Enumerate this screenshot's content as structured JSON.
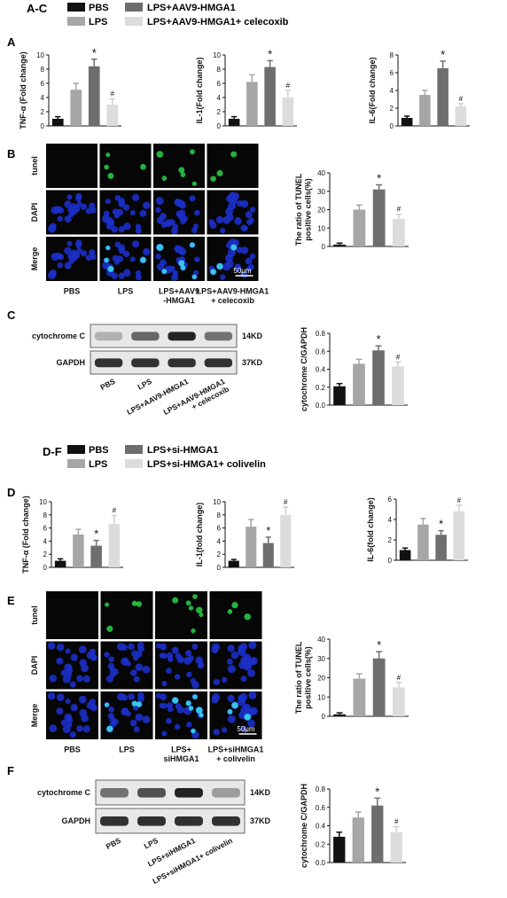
{
  "colors": {
    "black": "#111111",
    "dark": "#6e6e6e",
    "mid": "#a6a6a6",
    "light": "#dcdcdc",
    "micro_bg": "#060606",
    "nuclei": "#1c2fc8",
    "tunel": "#2ad14a",
    "merge": "#3ad7e6"
  },
  "panel_labels": {
    "ac": "A-C",
    "a": "A",
    "b": "B",
    "c": "C",
    "df": "D-F",
    "d": "D",
    "e": "E",
    "f": "F"
  },
  "legend_top": [
    "PBS",
    "LPS+AAV9-HMGA1",
    "LPS",
    "LPS+AAV9-HMGA1+ celecoxib"
  ],
  "legend_bottom": [
    "PBS",
    "LPS+si-HMGA1",
    "LPS",
    "LPS+si-HMGA1+ colivelin"
  ],
  "row_labels": [
    "tunel",
    "DAPI",
    "Merge"
  ],
  "scale_bar": "50μm",
  "b_columns": [
    "PBS",
    "LPS",
    "LPS+AAV9\n-HMGA1",
    "LPS+AAV9-HMGA1\n+ celecoxib"
  ],
  "e_columns": [
    "PBS",
    "LPS",
    "LPS+\nsiHMGA1",
    "LPS+siHMGA1\n+ colivelin"
  ],
  "c_blot": {
    "rows": [
      "cytochrome C",
      "GAPDH"
    ],
    "kd": [
      "14KD",
      "37KD"
    ],
    "lanes": [
      "PBS",
      "LPS",
      "LPS+AAV9-HMGA1",
      "LPS+AAV9-HMGA1\n+ celecoxib"
    ]
  },
  "f_blot": {
    "rows": [
      "cytochrome C",
      "GAPDH"
    ],
    "kd": [
      "14KD",
      "37KD"
    ],
    "lanes": [
      "PBS",
      "LPS",
      "LPS+siHMGA1",
      "LPS+siHMGA1+ colivelin"
    ]
  },
  "chart_data": [
    {
      "id": "A1",
      "type": "bar",
      "ylabel": "TNF-α (Fold change)",
      "ylim": [
        0,
        10
      ],
      "yticks": [
        0,
        2,
        4,
        6,
        8,
        10
      ],
      "values": [
        1.0,
        5.1,
        8.4,
        3.0
      ],
      "errors": [
        0.3,
        0.9,
        1.0,
        0.8
      ],
      "marks": [
        "",
        "",
        "*",
        "#"
      ]
    },
    {
      "id": "A2",
      "type": "bar",
      "ylabel": "IL-1(Fold change)",
      "ylim": [
        0,
        10
      ],
      "yticks": [
        0,
        2,
        4,
        6,
        8,
        10
      ],
      "values": [
        1.0,
        6.2,
        8.3,
        4.0
      ],
      "errors": [
        0.3,
        1.0,
        0.9,
        1.0
      ],
      "marks": [
        "",
        "",
        "*",
        "#"
      ]
    },
    {
      "id": "A3",
      "type": "bar",
      "ylabel": "IL-6(Fold change)",
      "ylim": [
        0,
        8
      ],
      "yticks": [
        0,
        2,
        4,
        6,
        8
      ],
      "values": [
        0.9,
        3.5,
        6.5,
        2.2
      ],
      "errors": [
        0.2,
        0.5,
        0.8,
        0.3
      ],
      "marks": [
        "",
        "",
        "*",
        "#"
      ]
    },
    {
      "id": "B",
      "type": "bar",
      "ylabel": "The ratio of TUNEL\npositive cells(%)",
      "ylim": [
        0,
        40
      ],
      "yticks": [
        0,
        10,
        20,
        30,
        40
      ],
      "values": [
        1.0,
        20.0,
        31.0,
        15.0
      ],
      "errors": [
        0.8,
        2.5,
        2.5,
        2.5
      ],
      "marks": [
        "",
        "",
        "*",
        "#"
      ]
    },
    {
      "id": "C",
      "type": "bar",
      "ylabel": "cytochrome C/GAPDH",
      "ylim": [
        0,
        0.8
      ],
      "yticks": [
        0.0,
        0.2,
        0.4,
        0.6,
        0.8
      ],
      "values": [
        0.21,
        0.46,
        0.61,
        0.43
      ],
      "errors": [
        0.03,
        0.05,
        0.05,
        0.05
      ],
      "marks": [
        "",
        "",
        "*",
        "#"
      ]
    },
    {
      "id": "D1",
      "type": "bar",
      "ylabel": "TNF-α (Fold change)",
      "ylim": [
        0,
        10
      ],
      "yticks": [
        0,
        2,
        4,
        6,
        8,
        10
      ],
      "values": [
        1.0,
        5.0,
        3.3,
        6.6
      ],
      "errors": [
        0.3,
        0.8,
        0.8,
        1.3
      ],
      "marks": [
        "",
        "",
        "*",
        "#"
      ]
    },
    {
      "id": "D2",
      "type": "bar",
      "ylabel": "IL-1(fold change)",
      "ylim": [
        0,
        10
      ],
      "yticks": [
        0,
        2,
        4,
        6,
        8,
        10
      ],
      "values": [
        1.0,
        6.2,
        3.7,
        8.0
      ],
      "errors": [
        0.2,
        1.1,
        0.9,
        1.2
      ],
      "marks": [
        "",
        "",
        "*",
        "#"
      ]
    },
    {
      "id": "D3",
      "type": "bar",
      "ylabel": "IL-6(fold change)",
      "ylim": [
        0,
        6
      ],
      "yticks": [
        0,
        2,
        4,
        6
      ],
      "values": [
        1.0,
        3.5,
        2.5,
        4.8
      ],
      "errors": [
        0.2,
        0.6,
        0.4,
        0.6
      ],
      "marks": [
        "",
        "",
        "*",
        "#"
      ]
    },
    {
      "id": "E",
      "type": "bar",
      "ylabel": "The ratio of TUNEL\npositive cells(%)",
      "ylim": [
        0,
        40
      ],
      "yticks": [
        0,
        10,
        20,
        30,
        40
      ],
      "values": [
        1.0,
        19.5,
        30.0,
        15.0
      ],
      "errors": [
        0.8,
        2.5,
        3.5,
        2.5
      ],
      "marks": [
        "",
        "",
        "*",
        "#"
      ]
    },
    {
      "id": "F",
      "type": "bar",
      "ylabel": "cytochrome C/GAPDH",
      "ylim": [
        0,
        0.8
      ],
      "yticks": [
        0.0,
        0.2,
        0.4,
        0.6,
        0.8
      ],
      "values": [
        0.28,
        0.49,
        0.62,
        0.33
      ],
      "errors": [
        0.05,
        0.06,
        0.08,
        0.06
      ],
      "marks": [
        "",
        "",
        "*",
        "#"
      ]
    }
  ]
}
